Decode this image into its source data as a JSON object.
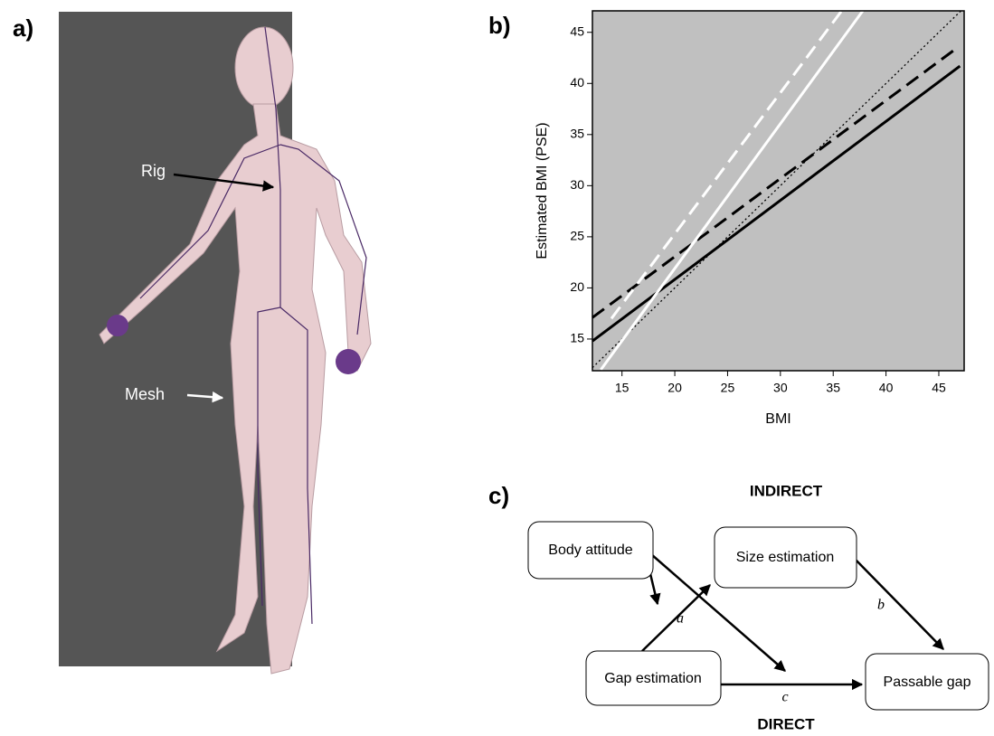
{
  "panel_labels": [
    "a)",
    "b)",
    "c)"
  ],
  "panel_a": {
    "rig_label": "Rig",
    "mesh_label": "Mesh"
  },
  "chart_data": {
    "type": "line",
    "xlabel": "BMI",
    "ylabel": "Estimated BMI (PSE)",
    "xlim": [
      12.2,
      47.4
    ],
    "ylim": [
      11.9,
      47.1
    ],
    "xticks": [
      15,
      20,
      25,
      30,
      35,
      40,
      45
    ],
    "yticks": [
      15,
      20,
      25,
      30,
      35,
      40,
      45
    ],
    "background": "#c0c0c0",
    "series": [
      {
        "color": "#000000",
        "style": "dotted",
        "x": [
          12.2,
          47.1
        ],
        "values": [
          12.2,
          47.1
        ]
      },
      {
        "color": "#000000",
        "style": "solid",
        "x": [
          12.2,
          47.0
        ],
        "values": [
          14.8,
          41.7
        ]
      },
      {
        "color": "#000000",
        "style": "dashed",
        "x": [
          12.2,
          46.5
        ],
        "values": [
          17.1,
          43.3
        ]
      },
      {
        "color": "#ffffff",
        "style": "solid",
        "x": [
          13.0,
          37.8
        ],
        "values": [
          12.0,
          47.1
        ]
      },
      {
        "color": "#ffffff",
        "style": "dashed",
        "x": [
          14.0,
          35.8
        ],
        "values": [
          17.0,
          47.1
        ]
      }
    ]
  },
  "panel_c": {
    "indirect": "INDIRECT",
    "direct": "DIRECT",
    "nodes": [
      "Body attitude",
      "Size estimation",
      "Gap estimation",
      "Passable gap"
    ],
    "edge_labels": [
      "a",
      "b",
      "c"
    ]
  }
}
